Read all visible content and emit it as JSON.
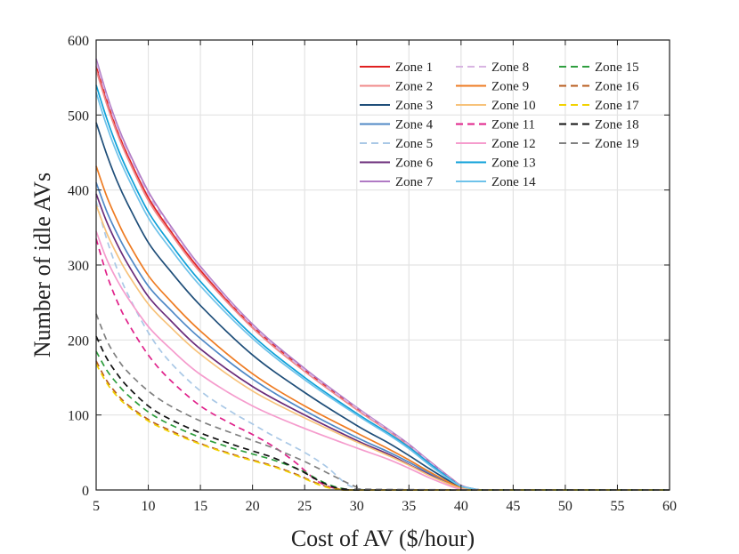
{
  "chart_data": {
    "type": "line",
    "title": "",
    "xlabel": "Cost of AV ($/hour)",
    "ylabel": "Number of idle AVs",
    "xlim": [
      5,
      60
    ],
    "ylim": [
      0,
      600
    ],
    "xticks": [
      5,
      10,
      15,
      20,
      25,
      30,
      35,
      40,
      45,
      50,
      55,
      60
    ],
    "yticks": [
      0,
      100,
      200,
      300,
      400,
      500,
      600
    ],
    "grid": true,
    "legend_position": "top-right",
    "series": [
      {
        "name": "Zone 1",
        "color": "#e02020",
        "dash": "solid",
        "x": [
          5,
          6,
          7,
          8,
          10,
          12,
          15,
          20,
          25,
          30,
          33,
          35,
          37,
          39,
          40,
          41,
          42,
          45,
          60
        ],
        "y": [
          565,
          520,
          480,
          447,
          390,
          348,
          293,
          218,
          160,
          108,
          80,
          60,
          38,
          16,
          6,
          2,
          0,
          0,
          0
        ]
      },
      {
        "name": "Zone 2",
        "color": "#f08a8a",
        "dash": "solid",
        "x": [
          5,
          6,
          7,
          8,
          10,
          12,
          15,
          20,
          25,
          30,
          33,
          35,
          37,
          39,
          40,
          41,
          42,
          45,
          60
        ],
        "y": [
          560,
          515,
          476,
          443,
          386,
          345,
          290,
          216,
          158,
          107,
          79,
          59,
          37,
          16,
          6,
          2,
          0,
          0,
          0
        ]
      },
      {
        "name": "Zone 3",
        "color": "#1f4e79",
        "dash": "solid",
        "x": [
          5,
          6,
          7,
          8,
          10,
          12,
          15,
          20,
          25,
          30,
          33,
          35,
          37,
          39,
          40,
          41,
          42,
          45,
          60
        ],
        "y": [
          490,
          448,
          412,
          382,
          330,
          294,
          246,
          180,
          130,
          86,
          63,
          46,
          28,
          11,
          4,
          1,
          0,
          0,
          0
        ]
      },
      {
        "name": "Zone 4",
        "color": "#4f88c6",
        "dash": "solid",
        "x": [
          5,
          6,
          7,
          8,
          10,
          12,
          15,
          20,
          25,
          30,
          33,
          35,
          37,
          39,
          40,
          41,
          42,
          45,
          60
        ],
        "y": [
          410,
          372,
          342,
          316,
          272,
          242,
          202,
          148,
          106,
          70,
          51,
          37,
          22,
          8,
          3,
          1,
          0,
          0,
          0
        ]
      },
      {
        "name": "Zone 5",
        "color": "#a9c8e6",
        "dash": "dashed",
        "x": [
          5,
          6,
          7,
          8,
          10,
          12,
          15,
          18,
          20,
          22,
          25,
          27,
          28,
          29,
          30,
          31,
          33,
          45,
          60
        ],
        "y": [
          385,
          335,
          295,
          262,
          210,
          172,
          132,
          104,
          88,
          72,
          50,
          32,
          20,
          8,
          2,
          0,
          0,
          0,
          0
        ]
      },
      {
        "name": "Zone 6",
        "color": "#6a2c7a",
        "dash": "solid",
        "x": [
          5,
          6,
          7,
          8,
          10,
          12,
          15,
          20,
          25,
          30,
          33,
          35,
          37,
          39,
          40,
          41,
          42,
          45,
          60
        ],
        "y": [
          395,
          358,
          328,
          302,
          258,
          228,
          188,
          138,
          100,
          66,
          48,
          34,
          20,
          7,
          2,
          1,
          0,
          0,
          0
        ]
      },
      {
        "name": "Zone 7",
        "color": "#b07ac4",
        "dash": "solid",
        "x": [
          5,
          6,
          7,
          8,
          10,
          12,
          15,
          20,
          25,
          30,
          33,
          35,
          37,
          39,
          40,
          41,
          42,
          45,
          60
        ],
        "y": [
          575,
          528,
          488,
          455,
          398,
          355,
          298,
          221,
          162,
          110,
          81,
          61,
          38,
          16,
          6,
          2,
          0,
          0,
          0
        ]
      },
      {
        "name": "Zone 8",
        "color": "#d8b4e2",
        "dash": "dashed",
        "x": [
          5,
          6,
          7,
          8,
          10,
          12,
          15,
          20,
          25,
          30,
          33,
          35,
          37,
          39,
          40,
          41,
          42,
          45,
          60
        ],
        "y": [
          570,
          524,
          484,
          451,
          394,
          352,
          296,
          219,
          160,
          109,
          80,
          60,
          37,
          15,
          6,
          2,
          0,
          0,
          0
        ]
      },
      {
        "name": "Zone 9",
        "color": "#ee7b22",
        "dash": "solid",
        "x": [
          5,
          6,
          7,
          8,
          10,
          12,
          15,
          20,
          25,
          30,
          33,
          35,
          37,
          39,
          40,
          41,
          42,
          45,
          60
        ],
        "y": [
          432,
          392,
          360,
          332,
          286,
          254,
          212,
          155,
          112,
          76,
          55,
          40,
          24,
          9,
          3,
          1,
          0,
          0,
          0
        ]
      },
      {
        "name": "Zone 10",
        "color": "#f7c27a",
        "dash": "solid",
        "x": [
          5,
          6,
          7,
          8,
          10,
          12,
          15,
          20,
          25,
          30,
          33,
          35,
          37,
          39,
          40,
          41,
          42,
          45,
          60
        ],
        "y": [
          380,
          343,
          314,
          289,
          248,
          219,
          181,
          132,
          96,
          64,
          46,
          33,
          19,
          7,
          2,
          1,
          0,
          0,
          0
        ]
      },
      {
        "name": "Zone 11",
        "color": "#e0218a",
        "dash": "dashed",
        "x": [
          5,
          6,
          7,
          8,
          10,
          12,
          15,
          18,
          20,
          22,
          24,
          25,
          26,
          27,
          28,
          29,
          33,
          45,
          60
        ],
        "y": [
          335,
          288,
          252,
          224,
          180,
          148,
          112,
          88,
          74,
          58,
          38,
          26,
          14,
          6,
          2,
          0,
          0,
          0,
          0
        ]
      },
      {
        "name": "Zone 12",
        "color": "#f59ccd",
        "dash": "solid",
        "x": [
          5,
          6,
          7,
          8,
          10,
          12,
          15,
          20,
          25,
          30,
          33,
          35,
          37,
          39,
          40,
          41,
          42,
          45,
          60
        ],
        "y": [
          345,
          308,
          280,
          257,
          218,
          190,
          154,
          112,
          82,
          56,
          41,
          29,
          16,
          5,
          1,
          0,
          0,
          0,
          0
        ]
      },
      {
        "name": "Zone 13",
        "color": "#0da0d8",
        "dash": "solid",
        "x": [
          5,
          6,
          7,
          8,
          10,
          12,
          15,
          20,
          25,
          30,
          33,
          35,
          37,
          39,
          40,
          41,
          42,
          45,
          60
        ],
        "y": [
          540,
          496,
          458,
          426,
          371,
          331,
          278,
          206,
          150,
          102,
          76,
          57,
          35,
          14,
          5,
          2,
          0,
          0,
          0
        ]
      },
      {
        "name": "Zone 14",
        "color": "#6ec2ea",
        "dash": "solid",
        "x": [
          5,
          6,
          7,
          8,
          10,
          12,
          15,
          20,
          25,
          30,
          33,
          35,
          37,
          39,
          40,
          41,
          42,
          45,
          60
        ],
        "y": [
          530,
          486,
          449,
          418,
          363,
          324,
          272,
          202,
          147,
          100,
          74,
          55,
          33,
          13,
          5,
          2,
          0,
          0,
          0
        ]
      },
      {
        "name": "Zone 15",
        "color": "#2e9e3e",
        "dash": "dashed",
        "x": [
          5,
          6,
          7,
          8,
          10,
          12,
          15,
          18,
          20,
          22,
          24,
          25,
          26,
          27,
          28,
          29,
          30,
          45,
          60
        ],
        "y": [
          185,
          160,
          142,
          127,
          104,
          88,
          70,
          56,
          48,
          40,
          30,
          24,
          16,
          9,
          4,
          1,
          0,
          0,
          0
        ]
      },
      {
        "name": "Zone 16",
        "color": "#b85c1e",
        "dash": "dashed",
        "x": [
          5,
          6,
          7,
          8,
          10,
          12,
          15,
          18,
          20,
          22,
          24,
          25,
          26,
          27,
          28,
          29,
          30,
          45,
          60
        ],
        "y": [
          172,
          146,
          128,
          114,
          94,
          80,
          62,
          48,
          40,
          32,
          22,
          16,
          10,
          5,
          2,
          0,
          0,
          0,
          0
        ]
      },
      {
        "name": "Zone 17",
        "color": "#f2d200",
        "dash": "dashed",
        "x": [
          5,
          6,
          7,
          8,
          10,
          12,
          15,
          18,
          20,
          22,
          24,
          25,
          26,
          27,
          28,
          29,
          30,
          45,
          60
        ],
        "y": [
          168,
          143,
          125,
          112,
          92,
          78,
          61,
          47,
          39,
          31,
          21,
          15,
          9,
          4,
          1,
          0,
          0,
          0,
          0
        ]
      },
      {
        "name": "Zone 18",
        "color": "#111111",
        "dash": "dashed",
        "x": [
          5,
          6,
          7,
          8,
          10,
          12,
          15,
          18,
          20,
          22,
          24,
          25,
          26,
          27,
          28,
          29,
          30,
          45,
          60
        ],
        "y": [
          205,
          176,
          155,
          138,
          112,
          95,
          76,
          61,
          52,
          43,
          30,
          23,
          15,
          8,
          3,
          1,
          0,
          0,
          0
        ]
      },
      {
        "name": "Zone 19",
        "color": "#808080",
        "dash": "dashed",
        "x": [
          5,
          6,
          7,
          8,
          10,
          12,
          15,
          18,
          20,
          22,
          24,
          25,
          26,
          27,
          28,
          29,
          30,
          31,
          45,
          60
        ],
        "y": [
          235,
          200,
          176,
          158,
          132,
          113,
          92,
          76,
          66,
          56,
          44,
          38,
          31,
          24,
          17,
          10,
          4,
          1,
          0,
          0
        ]
      }
    ]
  }
}
